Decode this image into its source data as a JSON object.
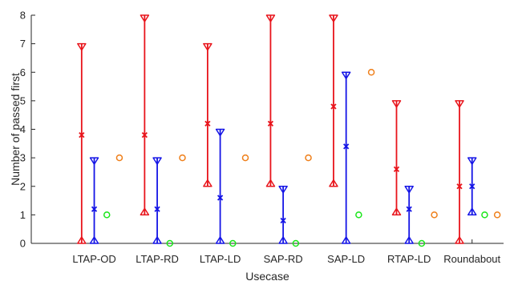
{
  "chart_data": {
    "type": "scatter",
    "title": "",
    "xlabel": "Usecase",
    "ylabel": "Number of passed first",
    "categories": [
      "LTAP-OD",
      "LTAP-RD",
      "LTAP-LD",
      "SAP-RD",
      "SAP-LD",
      "RTAP-LD",
      "Roundabout"
    ],
    "ylim": [
      0,
      8
    ],
    "yticks": [
      0,
      1,
      2,
      3,
      4,
      5,
      6,
      7,
      8
    ],
    "grid": false,
    "legend": "none",
    "colors": {
      "red": "#e8141b",
      "blue": "#1414e6",
      "green": "#19e619",
      "orange": "#ef7f1a"
    },
    "range_series": [
      {
        "color": "red",
        "offset": -0.2,
        "min": [
          0,
          1,
          2,
          2,
          2,
          1,
          0
        ],
        "max": [
          7,
          8,
          7,
          8,
          8,
          5,
          5
        ],
        "mean": [
          3.8,
          3.8,
          4.2,
          4.2,
          4.8,
          2.6,
          2.0
        ]
      },
      {
        "color": "blue",
        "offset": 0.0,
        "min": [
          0,
          0,
          0,
          0,
          0,
          0,
          1
        ],
        "max": [
          3,
          3,
          4,
          2,
          6,
          2,
          3
        ],
        "mean": [
          1.2,
          1.2,
          1.6,
          0.8,
          3.4,
          1.2,
          2.0
        ]
      }
    ],
    "point_series": [
      {
        "color": "green",
        "offset": 0.2,
        "values": [
          1,
          0,
          0,
          0,
          1,
          0,
          1
        ]
      },
      {
        "color": "orange",
        "offset": 0.4,
        "values": [
          3,
          3,
          3,
          3,
          6,
          1,
          1
        ]
      }
    ]
  }
}
